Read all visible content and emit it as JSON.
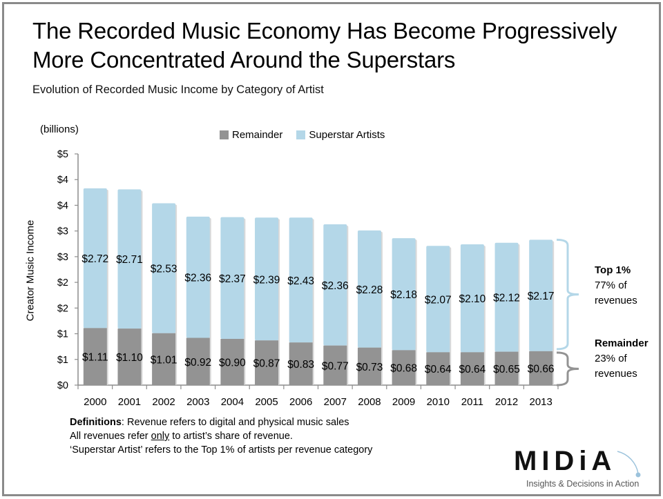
{
  "header": {
    "title_line1": "The Recorded Music Economy Has Become Progressively",
    "title_line2": "More Concentrated Around the Superstars",
    "subtitle": "Evolution of Recorded Music Income by Category of Artist"
  },
  "chart_data": {
    "type": "bar",
    "stacked": true,
    "title": "Evolution of Recorded Music Income by Category of Artist",
    "unit_label": "(billions)",
    "xlabel": "",
    "ylabel": "Creator  Music Income",
    "ylim": [
      0,
      4.5
    ],
    "yticks": [
      0,
      0.5,
      1,
      1.5,
      2,
      2.5,
      3,
      3.5,
      4,
      4.5
    ],
    "ytick_labels": [
      "$0",
      "$1",
      "$1",
      "$2",
      "$2",
      "$3",
      "$3",
      "$4",
      "$4",
      "$5"
    ],
    "grid": false,
    "legend_position": "top",
    "categories": [
      "2000",
      "2001",
      "2002",
      "2003",
      "2004",
      "2005",
      "2006",
      "2007",
      "2008",
      "2009",
      "2010",
      "2011",
      "2012",
      "2013"
    ],
    "series": [
      {
        "name": "Remainder",
        "color": "#939393",
        "values": [
          1.11,
          1.1,
          1.01,
          0.92,
          0.9,
          0.87,
          0.83,
          0.77,
          0.73,
          0.68,
          0.64,
          0.64,
          0.65,
          0.66
        ],
        "labels": [
          "$1.11",
          "$1.10",
          "$1.01",
          "$0.92",
          "$0.90",
          "$0.87",
          "$0.83",
          "$0.77",
          "$0.73",
          "$0.68",
          "$0.64",
          "$0.64",
          "$0.65",
          "$0.66"
        ]
      },
      {
        "name": "Superstar Artists",
        "color": "#b4d7e8",
        "values": [
          2.72,
          2.71,
          2.53,
          2.36,
          2.37,
          2.39,
          2.43,
          2.36,
          2.28,
          2.18,
          2.07,
          2.1,
          2.12,
          2.17
        ],
        "labels": [
          "$2.72",
          "$2.71",
          "$2.53",
          "$2.36",
          "$2.37",
          "$2.39",
          "$2.43",
          "$2.36",
          "$2.28",
          "$2.18",
          "$2.07",
          "$2.10",
          "$2.12",
          "$2.17"
        ]
      }
    ]
  },
  "annotations": {
    "top": {
      "heading": "Top 1%",
      "line1": "77% of",
      "line2": "revenues",
      "brace_color": "#b4d7e8"
    },
    "remainder": {
      "heading": "Remainder",
      "line1": "23% of",
      "line2": "revenues",
      "brace_color": "#939393"
    }
  },
  "definitions": {
    "label": "Definitions",
    "line1_rest": ": Revenue refers to digital and physical music sales",
    "line2_pre": "All revenues refer ",
    "line2_under": "only",
    "line2_post": " to artist’s share of revenue.",
    "line3": "‘Superstar Artist’ refers to the Top 1% of artists per revenue category"
  },
  "logo": {
    "word": "MIDiA",
    "tagline": "Insights & Decisions in Action",
    "accent": "#9cc3dc"
  }
}
